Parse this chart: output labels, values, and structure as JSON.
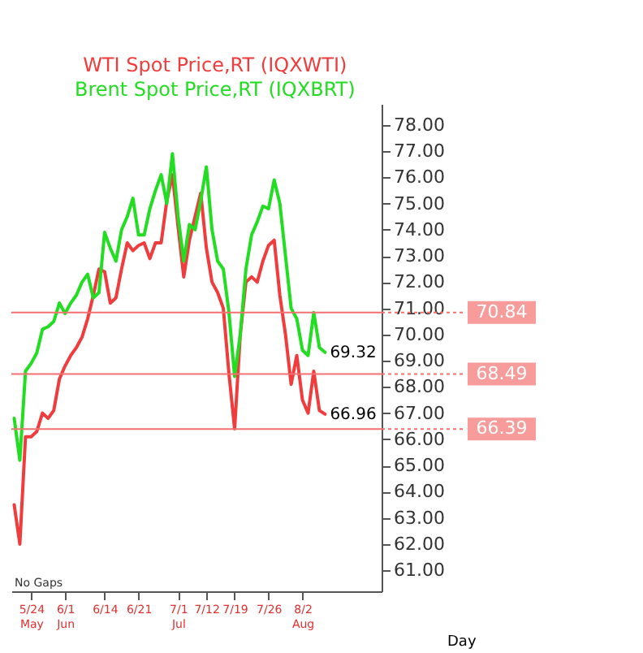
{
  "chart_data": {
    "type": "line",
    "categories": [
      null,
      null,
      null,
      "5/24\nMay",
      null,
      null,
      null,
      null,
      null,
      "6/1\nJun",
      null,
      null,
      null,
      null,
      null,
      null,
      "6/14",
      null,
      null,
      null,
      null,
      null,
      "6/21",
      null,
      null,
      null,
      null,
      null,
      null,
      "7/1\nJul",
      null,
      null,
      null,
      null,
      "7/12",
      null,
      null,
      null,
      null,
      "7/19",
      null,
      null,
      null,
      null,
      null,
      "7/26",
      null,
      null,
      null,
      null,
      null,
      "8/2\nAug",
      null,
      null,
      null,
      null
    ],
    "series": [
      {
        "name": "WTI Spot Price,RT (IQXWTI)",
        "color": "#f03c3c",
        "values": [
          63.5,
          62.0,
          66.1,
          66.1,
          66.3,
          67.0,
          66.8,
          67.1,
          68.3,
          68.8,
          69.2,
          69.5,
          69.9,
          70.6,
          71.5,
          72.5,
          72.4,
          71.2,
          71.4,
          72.5,
          73.5,
          73.2,
          73.4,
          73.5,
          72.9,
          73.5,
          73.5,
          75.1,
          76.1,
          74.1,
          72.2,
          73.6,
          74.5,
          75.4,
          73.3,
          72.0,
          71.6,
          71.0,
          68.5,
          66.4,
          70.0,
          72.0,
          72.2,
          72.0,
          72.8,
          73.4,
          73.6,
          71.5,
          70.0,
          68.1,
          69.2,
          67.5,
          67.0,
          68.6,
          67.1,
          66.96
        ],
        "value_labels": [
          null,
          null,
          null,
          null,
          null,
          null,
          null,
          null,
          null,
          null,
          null,
          null,
          null,
          null,
          null,
          null,
          null,
          null,
          null,
          null,
          null,
          null,
          null,
          null,
          null,
          null,
          null,
          null,
          null,
          null,
          null,
          null,
          null,
          null,
          null,
          null,
          null,
          null,
          null,
          null,
          null,
          null,
          null,
          null,
          null,
          null,
          null,
          null,
          null,
          null,
          null,
          null,
          null,
          null,
          null,
          "66.96"
        ]
      },
      {
        "name": "Brent Spot Price,RT (IQXBRT)",
        "color": "#22dd22",
        "values": [
          66.8,
          65.2,
          68.6,
          68.9,
          69.3,
          70.2,
          70.3,
          70.5,
          71.2,
          70.8,
          71.2,
          71.5,
          72.0,
          72.3,
          71.4,
          71.6,
          73.9,
          73.3,
          72.8,
          74.0,
          74.5,
          75.2,
          73.8,
          73.8,
          74.8,
          75.5,
          76.1,
          75.0,
          76.9,
          74.5,
          72.8,
          74.2,
          74.0,
          75.1,
          76.4,
          74.0,
          72.8,
          72.5,
          70.84,
          68.4,
          70.0,
          72.5,
          73.8,
          74.3,
          74.9,
          74.8,
          75.9,
          75.0,
          73.0,
          71.0,
          70.6,
          69.4,
          69.2,
          70.84,
          69.5,
          69.32
        ],
        "value_labels": [
          null,
          null,
          null,
          null,
          null,
          null,
          null,
          null,
          null,
          null,
          null,
          null,
          null,
          null,
          null,
          null,
          null,
          null,
          null,
          null,
          null,
          null,
          null,
          null,
          null,
          null,
          null,
          null,
          null,
          null,
          null,
          null,
          null,
          null,
          null,
          null,
          null,
          null,
          null,
          null,
          null,
          null,
          null,
          null,
          null,
          null,
          null,
          null,
          null,
          null,
          null,
          null,
          null,
          null,
          null,
          "69.32"
        ]
      }
    ],
    "ylim": [
      60.2,
      78.8
    ],
    "yticks": [
      {
        "value": 61,
        "label": "61.00"
      },
      {
        "value": 62,
        "label": "62.00"
      },
      {
        "value": 63,
        "label": "63.00"
      },
      {
        "value": 64,
        "label": "64.00"
      },
      {
        "value": 65,
        "label": "65.00"
      },
      {
        "value": 66,
        "label": "66.00"
      },
      {
        "value": 67,
        "label": "67.00"
      },
      {
        "value": 68,
        "label": "68.00"
      },
      {
        "value": 69,
        "label": "69.00"
      },
      {
        "value": 70,
        "label": "70.00"
      },
      {
        "value": 71,
        "label": "71.00"
      },
      {
        "value": 72,
        "label": "72.00"
      },
      {
        "value": 73,
        "label": "73.00"
      },
      {
        "value": 74,
        "label": "74.00"
      },
      {
        "value": 75,
        "label": "75.00"
      },
      {
        "value": 76,
        "label": "76.00"
      },
      {
        "value": 77,
        "label": "77.00"
      },
      {
        "value": 78,
        "label": "78.00"
      }
    ],
    "xlabel": "Day",
    "ref_lines": [
      {
        "axis": "y",
        "value": 70.84,
        "label": "70.84",
        "color": "#f47070"
      },
      {
        "axis": "y",
        "value": 68.49,
        "label": "68.49",
        "color": "#f47070"
      },
      {
        "axis": "y",
        "value": 66.39,
        "label": "66.39",
        "color": "#f47070"
      }
    ],
    "annotations": [
      "No Gaps"
    ],
    "legend": "top",
    "grid": false,
    "marker": "none",
    "line_style": "solid"
  }
}
